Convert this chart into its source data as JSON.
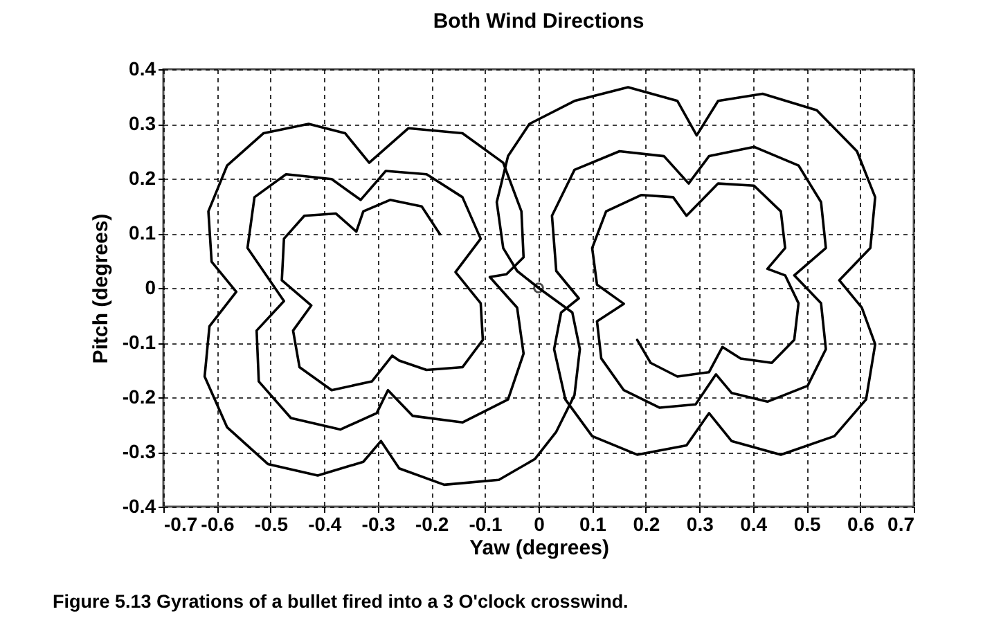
{
  "chart_data": {
    "type": "line",
    "title": "Both Wind Directions",
    "xlabel": "Yaw (degrees)",
    "ylabel": "Pitch (degrees)",
    "annotations": [
      "Figure 5.13 Gyrations of a bullet fired into a 3 O'clock crosswind."
    ],
    "xlim": [
      -0.7,
      0.7
    ],
    "xticks": [
      -0.7,
      -0.6,
      -0.5,
      -0.4,
      -0.3,
      -0.2,
      -0.1,
      0,
      0.1,
      0.2,
      0.3,
      0.4,
      0.5,
      0.6,
      0.7
    ],
    "ylim": [
      -0.4,
      0.4
    ],
    "yticks": [
      -0.4,
      -0.3,
      -0.2,
      -0.1,
      0,
      0.1,
      0.2,
      0.3,
      0.4
    ],
    "grid": true,
    "series": [
      {
        "type": "line",
        "color": "#000000",
        "x": [
          0,
          0.063,
          0.077,
          0.067,
          0.033,
          -0.007,
          -0.074,
          -0.176,
          -0.26,
          -0.294,
          -0.327,
          -0.412,
          -0.505,
          -0.581,
          -0.623,
          -0.614,
          -0.564,
          -0.61,
          -0.616,
          -0.581,
          -0.513,
          -0.429,
          -0.361,
          -0.316,
          -0.243,
          -0.142,
          -0.066,
          -0.032,
          -0.028,
          -0.06,
          -0.091,
          -0.04,
          -0.028,
          -0.057,
          -0.142,
          -0.235,
          -0.281,
          -0.302,
          -0.37,
          -0.462,
          -0.522,
          -0.526,
          -0.475,
          -0.543,
          -0.53,
          -0.471,
          -0.386,
          -0.332,
          -0.285,
          -0.209,
          -0.142,
          -0.108,
          -0.155,
          -0.108,
          -0.104,
          -0.142,
          -0.209,
          -0.26,
          -0.273,
          -0.311,
          -0.386,
          -0.446,
          -0.458,
          -0.424,
          -0.479,
          -0.475,
          -0.437,
          -0.378,
          -0.34,
          -0.327,
          -0.277,
          -0.218,
          -0.184
        ],
        "values": [
          0,
          -0.045,
          -0.112,
          -0.196,
          -0.263,
          -0.313,
          -0.351,
          -0.36,
          -0.33,
          -0.28,
          -0.318,
          -0.343,
          -0.322,
          -0.255,
          -0.162,
          -0.07,
          -0.007,
          0.048,
          0.14,
          0.224,
          0.283,
          0.3,
          0.283,
          0.229,
          0.292,
          0.283,
          0.229,
          0.14,
          0.056,
          0.025,
          0.02,
          -0.036,
          -0.12,
          -0.204,
          -0.246,
          -0.234,
          -0.187,
          -0.229,
          -0.259,
          -0.238,
          -0.171,
          -0.078,
          -0.024,
          0.073,
          0.166,
          0.208,
          0.199,
          0.161,
          0.214,
          0.208,
          0.166,
          0.09,
          0.029,
          -0.028,
          -0.095,
          -0.145,
          -0.15,
          -0.133,
          -0.124,
          -0.171,
          -0.187,
          -0.145,
          -0.078,
          -0.032,
          0.014,
          0.09,
          0.132,
          0.136,
          0.103,
          0.14,
          0.161,
          0.149,
          0.098
        ]
      },
      {
        "type": "line",
        "color": "#000000",
        "x": [
          0,
          -0.04,
          -0.066,
          -0.078,
          -0.057,
          -0.017,
          0.067,
          0.167,
          0.259,
          0.295,
          0.335,
          0.418,
          0.519,
          0.594,
          0.628,
          0.619,
          0.561,
          0.603,
          0.628,
          0.611,
          0.552,
          0.452,
          0.36,
          0.318,
          0.276,
          0.184,
          0.1,
          0.05,
          0.029,
          0.042,
          0.075,
          0.033,
          0.025,
          0.067,
          0.151,
          0.234,
          0.28,
          0.318,
          0.402,
          0.485,
          0.527,
          0.536,
          0.477,
          0.527,
          0.536,
          0.502,
          0.427,
          0.36,
          0.331,
          0.293,
          0.226,
          0.159,
          0.117,
          0.109,
          0.159,
          0.109,
          0.1,
          0.126,
          0.192,
          0.251,
          0.276,
          0.335,
          0.402,
          0.452,
          0.46,
          0.427,
          0.46,
          0.485,
          0.477,
          0.435,
          0.377,
          0.343,
          0.318,
          0.259,
          0.209,
          0.184
        ],
        "values": [
          0,
          0.031,
          0.073,
          0.157,
          0.241,
          0.3,
          0.342,
          0.367,
          0.342,
          0.279,
          0.342,
          0.355,
          0.325,
          0.25,
          0.166,
          0.073,
          0.014,
          -0.036,
          -0.103,
          -0.204,
          -0.271,
          -0.305,
          -0.28,
          -0.229,
          -0.288,
          -0.305,
          -0.271,
          -0.204,
          -0.112,
          -0.045,
          -0.019,
          0.031,
          0.132,
          0.216,
          0.25,
          0.241,
          0.191,
          0.241,
          0.258,
          0.224,
          0.157,
          0.073,
          0.023,
          -0.028,
          -0.112,
          -0.179,
          -0.208,
          -0.192,
          -0.158,
          -0.213,
          -0.219,
          -0.187,
          -0.129,
          -0.061,
          -0.029,
          0.006,
          0.073,
          0.14,
          0.17,
          0.166,
          0.132,
          0.191,
          0.187,
          0.14,
          0.073,
          0.035,
          0.023,
          -0.028,
          -0.095,
          -0.137,
          -0.129,
          -0.108,
          -0.154,
          -0.162,
          -0.137,
          -0.095
        ]
      },
      {
        "type": "scatter",
        "color": "#000000",
        "marker": "circle",
        "x": [
          0
        ],
        "values": [
          0
        ]
      }
    ]
  }
}
